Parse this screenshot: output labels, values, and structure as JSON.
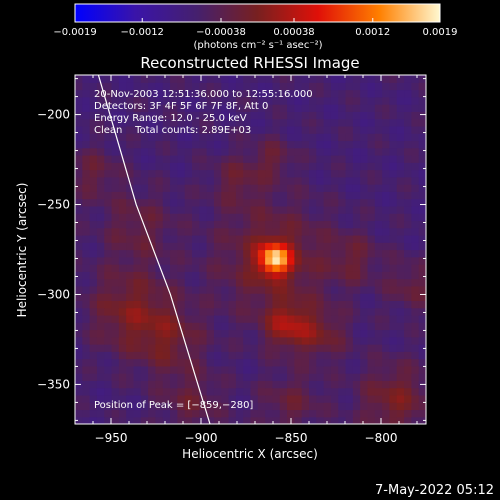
{
  "chart_data": {
    "type": "heatmap",
    "title": "Reconstructed RHESSI Image",
    "xlabel": "Heliocentric X (arcsec)",
    "ylabel": "Heliocentric Y (arcsec)",
    "xlim": [
      -970,
      -775
    ],
    "ylim": [
      -372,
      -178
    ],
    "x_ticks": [
      -950,
      -900,
      -850,
      -800
    ],
    "x_tick_labels": [
      "−950",
      "−900",
      "−850",
      "−800"
    ],
    "y_ticks": [
      -200,
      -250,
      -300,
      -350
    ],
    "y_tick_labels": [
      "−200",
      "−250",
      "−300",
      "−350"
    ],
    "colorbar": {
      "range": [
        -0.0019,
        0.0019
      ],
      "ticks": [
        -0.0019,
        -0.0012,
        -0.00038,
        0.00038,
        0.0012,
        0.0019
      ],
      "tick_labels": [
        "−0.0019",
        "−0.0012",
        "−0.00038",
        "0.00038",
        "0.0012",
        "0.0019"
      ],
      "unit_label": "(photons cm⁻² s⁻¹ asec⁻²)",
      "colors": [
        "#0000ff",
        "#3a14a8",
        "#45206e",
        "#782020",
        "#e01008",
        "#ff7f00",
        "#fff8d0"
      ]
    },
    "annotations": [
      "20-Nov-2003 12:51:36.000 to 12:55:16.000",
      "Detectors: 3F 4F 5F 6F 7F 8F, Att 0",
      "Energy Range: 12.0 - 25.0 keV",
      "Clean    Total counts: 2.89E+03"
    ],
    "peak_label": "Position of Peak = [−859,−280]",
    "peak": [
      -859,
      -280
    ],
    "sources": [
      {
        "x": -859,
        "y": -280,
        "sigma": 6,
        "amplitude": 0.0019
      },
      {
        "x": -860,
        "y": -280,
        "sigma": 22,
        "amplitude": 0.0006
      },
      {
        "x": -852,
        "y": -317,
        "sigma": 9,
        "amplitude": 0.0008
      },
      {
        "x": -940,
        "y": -308,
        "sigma": 16,
        "amplitude": 0.0006
      },
      {
        "x": -918,
        "y": -325,
        "sigma": 14,
        "amplitude": 0.0005
      },
      {
        "x": -935,
        "y": -262,
        "sigma": 14,
        "amplitude": 0.0004
      },
      {
        "x": -960,
        "y": -232,
        "sigma": 10,
        "amplitude": 0.0004
      },
      {
        "x": -880,
        "y": -236,
        "sigma": 10,
        "amplitude": 0.0004
      },
      {
        "x": -860,
        "y": -224,
        "sigma": 8,
        "amplitude": 0.0004
      },
      {
        "x": -833,
        "y": -322,
        "sigma": 10,
        "amplitude": 0.0005
      },
      {
        "x": -792,
        "y": -358,
        "sigma": 14,
        "amplitude": 0.0006
      },
      {
        "x": -783,
        "y": -295,
        "sigma": 10,
        "amplitude": 0.0004
      },
      {
        "x": -815,
        "y": -280,
        "sigma": 10,
        "amplitude": 0.0004
      },
      {
        "x": -905,
        "y": -360,
        "sigma": 12,
        "amplitude": 0.0004
      },
      {
        "x": -850,
        "y": -360,
        "sigma": 12,
        "amplitude": 0.0004
      }
    ],
    "limb_curve": [
      [
        -957,
        -178
      ],
      [
        -936,
        -250
      ],
      [
        -917,
        -300
      ],
      [
        -895,
        -372
      ]
    ],
    "grid": false
  },
  "footer_date": "7-May-2022 05:12"
}
